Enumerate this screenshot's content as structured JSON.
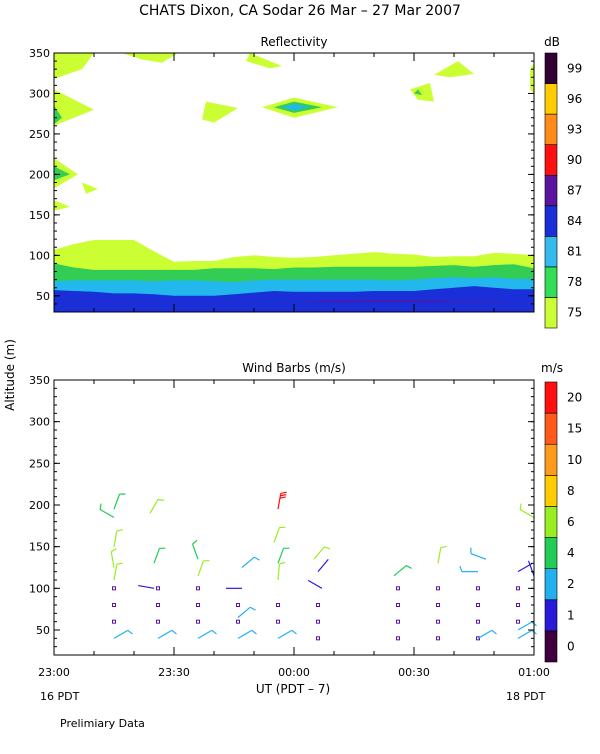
{
  "title": "CHATS Dixon, CA  Sodar  26 Mar – 27 Mar 2007",
  "footer_note": "Prelimiary Data",
  "y_axis_label": "Altitude (m)",
  "x_axis_label": "UT  (PDT – 7)",
  "x_ticks": [
    {
      "t": 0,
      "label": "23:00"
    },
    {
      "t": 30,
      "label": "23:30"
    },
    {
      "t": 60,
      "label": "00:00"
    },
    {
      "t": 90,
      "label": "00:30"
    },
    {
      "t": 120,
      "label": "01:00"
    }
  ],
  "x_date_left": "16 PDT",
  "x_date_right": "18 PDT",
  "colors": {
    "white": "#ffffff",
    "lime": "#ccff33",
    "green": "#33cc55",
    "cyan": "#22b8ee",
    "blue": "#1a2fd8",
    "purple": "#5a14a0"
  },
  "chart_data": [
    {
      "type": "heatmap",
      "title": "Reflectivity",
      "unit": "dB",
      "x_range_minutes": [
        0,
        120
      ],
      "ylim": [
        30,
        350
      ],
      "y_ticks": [
        50,
        100,
        150,
        200,
        250,
        300,
        350
      ],
      "colorbar_ticks": [
        "75",
        "78",
        "81",
        "84",
        "87",
        "90",
        "93",
        "96",
        "99"
      ],
      "colorbar_colors": [
        "#ccff33",
        "#33dd55",
        "#33bbee",
        "#1a2fd8",
        "#5a14a0",
        "#ff1010",
        "#ff8c1a",
        "#ffcc00",
        "#330033"
      ],
      "bands": {
        "x": [
          0,
          5,
          10,
          15,
          20,
          25,
          30,
          35,
          40,
          45,
          50,
          55,
          60,
          65,
          70,
          75,
          80,
          85,
          90,
          95,
          100,
          105,
          110,
          115,
          120
        ],
        "lime_top": [
          107,
          114,
          119,
          119,
          119,
          105,
          92,
          93,
          93,
          98,
          100,
          98,
          97,
          98,
          100,
          102,
          104,
          102,
          101,
          98,
          99,
          99,
          103,
          102,
          100
        ],
        "green_top": [
          90,
          85,
          82,
          82,
          82,
          82,
          82,
          82,
          84,
          84,
          84,
          83,
          85,
          85,
          86,
          86,
          86,
          86,
          86,
          87,
          88,
          86,
          88,
          89,
          84
        ],
        "cyan_top": [
          68,
          69,
          69,
          69,
          69,
          68,
          69,
          69,
          68,
          67,
          69,
          70,
          70,
          70,
          70,
          70,
          70,
          69,
          70,
          72,
          73,
          72,
          73,
          71,
          71
        ],
        "blue_top": [
          57,
          56,
          55,
          53,
          53,
          52,
          50,
          50,
          50,
          52,
          54,
          56,
          55,
          55,
          55,
          55,
          56,
          56,
          56,
          58,
          60,
          62,
          60,
          58,
          58
        ],
        "purple_top": [
          42,
          42,
          42,
          42,
          42,
          42,
          42,
          42,
          42,
          42,
          42,
          42,
          42,
          43,
          44,
          44,
          44,
          44,
          44,
          44,
          43,
          43,
          43,
          42,
          42
        ]
      },
      "patches": [
        {
          "fill": "lime",
          "points": [
            [
              0,
              350
            ],
            [
              10,
              350
            ],
            [
              7,
              330
            ],
            [
              0,
              318
            ]
          ]
        },
        {
          "fill": "lime",
          "points": [
            [
              17,
              350
            ],
            [
              31,
              350
            ],
            [
              27,
              338
            ],
            [
              22,
              342
            ]
          ]
        },
        {
          "fill": "lime",
          "points": [
            [
              0,
              305
            ],
            [
              10,
              280
            ],
            [
              0,
              260
            ]
          ]
        },
        {
          "fill": "green",
          "points": [
            [
              0,
              285
            ],
            [
              2,
              270
            ],
            [
              0,
              262
            ]
          ]
        },
        {
          "fill": "lime",
          "points": [
            [
              0,
              220
            ],
            [
              6,
              200
            ],
            [
              0,
              183
            ]
          ]
        },
        {
          "fill": "green",
          "points": [
            [
              0,
              210
            ],
            [
              4,
              200
            ],
            [
              0,
              193
            ]
          ]
        },
        {
          "fill": "lime",
          "points": [
            [
              7,
              190
            ],
            [
              11,
              182
            ],
            [
              8,
              176
            ]
          ]
        },
        {
          "fill": "lime",
          "points": [
            [
              0,
              168
            ],
            [
              4,
              160
            ],
            [
              0,
              155
            ]
          ]
        },
        {
          "fill": "lime",
          "points": [
            [
              49,
              350
            ],
            [
              57,
              334
            ],
            [
              54,
              331
            ],
            [
              48,
              340
            ]
          ]
        },
        {
          "fill": "lime",
          "points": [
            [
              38,
              290
            ],
            [
              46,
              282
            ],
            [
              40,
              264
            ],
            [
              37,
              268
            ]
          ]
        },
        {
          "fill": "lime",
          "points": [
            [
              52,
              283
            ],
            [
              60,
              295
            ],
            [
              71,
              283
            ],
            [
              60,
              270
            ]
          ]
        },
        {
          "fill": "green",
          "points": [
            [
              55,
              283
            ],
            [
              60,
              290
            ],
            [
              67,
              283
            ],
            [
              60,
              276
            ]
          ]
        },
        {
          "fill": "cyan",
          "points": [
            [
              57,
              283
            ],
            [
              60,
              287
            ],
            [
              64,
              283
            ],
            [
              60,
              279
            ]
          ]
        },
        {
          "fill": "lime",
          "points": [
            [
              89,
              305
            ],
            [
              94,
              313
            ],
            [
              95,
              290
            ],
            [
              91,
              292
            ]
          ]
        },
        {
          "fill": "green",
          "points": [
            [
              90,
              300
            ],
            [
              91,
              305
            ],
            [
              92,
              298
            ]
          ]
        },
        {
          "fill": "lime",
          "points": [
            [
              95,
              323
            ],
            [
              101,
              340
            ],
            [
              105,
              324
            ],
            [
              99,
              320
            ]
          ]
        },
        {
          "fill": "lime",
          "points": [
            [
              119,
              330
            ],
            [
              120,
              338
            ],
            [
              120,
              300
            ],
            [
              119,
              305
            ]
          ]
        }
      ]
    },
    {
      "type": "scatter",
      "title": "Wind Barbs (m/s)",
      "unit": "m/s",
      "x_range_minutes": [
        0,
        120
      ],
      "ylim": [
        20,
        350
      ],
      "y_ticks": [
        50,
        100,
        150,
        200,
        250,
        300,
        350
      ],
      "colorbar_ticks": [
        "0",
        "1",
        "2",
        "4",
        "6",
        "8",
        "10",
        "15",
        "20"
      ],
      "colorbar_colors": [
        "#400040",
        "#2a1ad8",
        "#22b0ee",
        "#22cc55",
        "#99ee22",
        "#ffcc00",
        "#ff9a1a",
        "#ff5a1a",
        "#ff1010"
      ],
      "calm_points": [
        {
          "t": 15,
          "alt": 100
        },
        {
          "t": 15,
          "alt": 80
        },
        {
          "t": 15,
          "alt": 60
        },
        {
          "t": 26,
          "alt": 100
        },
        {
          "t": 26,
          "alt": 80
        },
        {
          "t": 26,
          "alt": 60
        },
        {
          "t": 36,
          "alt": 100
        },
        {
          "t": 36,
          "alt": 80
        },
        {
          "t": 36,
          "alt": 60
        },
        {
          "t": 46,
          "alt": 80
        },
        {
          "t": 46,
          "alt": 60
        },
        {
          "t": 56,
          "alt": 80
        },
        {
          "t": 56,
          "alt": 60
        },
        {
          "t": 66,
          "alt": 80
        },
        {
          "t": 66,
          "alt": 60
        },
        {
          "t": 66,
          "alt": 40
        },
        {
          "t": 86,
          "alt": 100
        },
        {
          "t": 86,
          "alt": 80
        },
        {
          "t": 86,
          "alt": 60
        },
        {
          "t": 86,
          "alt": 40
        },
        {
          "t": 96,
          "alt": 100
        },
        {
          "t": 96,
          "alt": 80
        },
        {
          "t": 96,
          "alt": 60
        },
        {
          "t": 96,
          "alt": 40
        },
        {
          "t": 106,
          "alt": 100
        },
        {
          "t": 106,
          "alt": 80
        },
        {
          "t": 106,
          "alt": 60
        },
        {
          "t": 106,
          "alt": 40
        },
        {
          "t": 116,
          "alt": 100
        },
        {
          "t": 116,
          "alt": 80
        },
        {
          "t": 116,
          "alt": 60
        }
      ],
      "barbs": [
        {
          "t": 15,
          "alt": 195,
          "dir": 20,
          "speed": 5
        },
        {
          "t": 15,
          "alt": 185,
          "dir": 300,
          "speed": 4
        },
        {
          "t": 15,
          "alt": 150,
          "dir": 10,
          "speed": 7
        },
        {
          "t": 15,
          "alt": 125,
          "dir": 350,
          "speed": 6
        },
        {
          "t": 15,
          "alt": 110,
          "dir": 10,
          "speed": 7
        },
        {
          "t": 15,
          "alt": 40,
          "dir": 60,
          "speed": 3
        },
        {
          "t": 24,
          "alt": 190,
          "dir": 30,
          "speed": 6
        },
        {
          "t": 25,
          "alt": 130,
          "dir": 20,
          "speed": 5
        },
        {
          "t": 25,
          "alt": 100,
          "dir": 280,
          "speed": 1
        },
        {
          "t": 26,
          "alt": 40,
          "dir": 60,
          "speed": 3
        },
        {
          "t": 36,
          "alt": 135,
          "dir": 340,
          "speed": 5
        },
        {
          "t": 36,
          "alt": 115,
          "dir": 20,
          "speed": 7
        },
        {
          "t": 36,
          "alt": 40,
          "dir": 60,
          "speed": 3
        },
        {
          "t": 47,
          "alt": 125,
          "dir": 50,
          "speed": 3
        },
        {
          "t": 47,
          "alt": 100,
          "dir": 270,
          "speed": 1
        },
        {
          "t": 46,
          "alt": 65,
          "dir": 50,
          "speed": 3
        },
        {
          "t": 46,
          "alt": 40,
          "dir": 60,
          "speed": 3
        },
        {
          "t": 56,
          "alt": 195,
          "dir": 10,
          "speed": 20
        },
        {
          "t": 55,
          "alt": 155,
          "dir": 20,
          "speed": 7
        },
        {
          "t": 56,
          "alt": 130,
          "dir": 20,
          "speed": 5
        },
        {
          "t": 56,
          "alt": 110,
          "dir": 5,
          "speed": 6
        },
        {
          "t": 56,
          "alt": 40,
          "dir": 60,
          "speed": 3
        },
        {
          "t": 65,
          "alt": 135,
          "dir": 40,
          "speed": 7
        },
        {
          "t": 66,
          "alt": 120,
          "dir": 40,
          "speed": 1
        },
        {
          "t": 67,
          "alt": 100,
          "dir": 300,
          "speed": 1
        },
        {
          "t": 85,
          "alt": 115,
          "dir": 50,
          "speed": 4
        },
        {
          "t": 96,
          "alt": 130,
          "dir": 10,
          "speed": 7
        },
        {
          "t": 106,
          "alt": 120,
          "dir": 270,
          "speed": 3
        },
        {
          "t": 108,
          "alt": 135,
          "dir": 290,
          "speed": 3
        },
        {
          "t": 106,
          "alt": 40,
          "dir": 60,
          "speed": 3
        },
        {
          "t": 116,
          "alt": 120,
          "dir": 60,
          "speed": 1
        },
        {
          "t": 116,
          "alt": 50,
          "dir": 60,
          "speed": 3
        },
        {
          "t": 116,
          "alt": 40,
          "dir": 60,
          "speed": 3
        },
        {
          "t": 120,
          "alt": 185,
          "dir": 300,
          "speed": 6
        },
        {
          "t": 120,
          "alt": 115,
          "dir": 340,
          "speed": 1
        }
      ]
    }
  ]
}
